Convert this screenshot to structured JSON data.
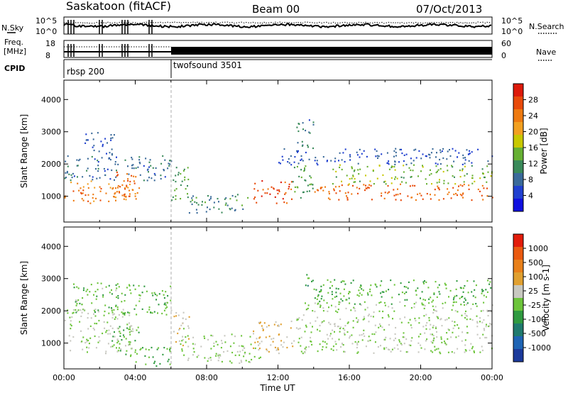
{
  "header": {
    "station": "Saskatoon (fitACF)",
    "beam": "Beam 00",
    "date": "07/Oct/2013"
  },
  "panels": {
    "nsky_label": "N.Sky",
    "nsearch_label": "N.Search",
    "nsky_ticks": [
      "10^5",
      "10^0"
    ],
    "nsearch_ticks": [
      "10^5",
      "10^0"
    ],
    "freq_label": [
      "Freq.",
      "[MHz]"
    ],
    "freq_ticks": [
      "18",
      "8"
    ],
    "nave_label": "Nave",
    "nave_ticks": [
      "60",
      "0"
    ],
    "cpid_label": "CPID",
    "cpid_segments": [
      {
        "name": "rbsp 200",
        "start_hour": 0,
        "end_hour": 6
      },
      {
        "name": "twofsound 3501",
        "start_hour": 6,
        "end_hour": 24
      }
    ]
  },
  "colors": {
    "power_scale": [
      "#1010e0",
      "#2040d0",
      "#3a6a9a",
      "#3a8a5a",
      "#66b033",
      "#c8c800",
      "#f2a020",
      "#ee7a10",
      "#e84a0a",
      "#dd1a0a"
    ],
    "velocity_scale": [
      "#1b3a9b",
      "#1e64b4",
      "#1f7a6e",
      "#2f9a40",
      "#6cc43a",
      "#c8c8c0",
      "#e0a030",
      "#e8801a",
      "#ea5a10",
      "#e21c0a"
    ],
    "power_bins": [
      30,
      28,
      24,
      20,
      16,
      12,
      8,
      4
    ],
    "velocity_bins": [
      1000,
      500,
      100,
      25,
      -25,
      -100,
      -500,
      -1000
    ]
  },
  "chart_data": [
    {
      "type": "heatmap",
      "title": "",
      "xlabel": "",
      "ylabel": "Slant Range [km]",
      "xlim": [
        0,
        24
      ],
      "ylim": [
        200,
        4600
      ],
      "yticks": [
        "1000",
        "2000",
        "3000",
        "4000"
      ],
      "colorbar_label": "Power [dB]",
      "colorbar_ticks": [
        "28",
        "24",
        "20",
        "16",
        "12",
        "8",
        "4"
      ],
      "colorbar_range": [
        0,
        30
      ],
      "regions": [
        {
          "x0": 0.0,
          "x1": 4.2,
          "y0": 800,
          "y1": 1500,
          "level": 22
        },
        {
          "x0": 2.5,
          "x1": 4.0,
          "y0": 1000,
          "y1": 1800,
          "level": 24
        },
        {
          "x0": 0.0,
          "x1": 6.0,
          "y0": 1500,
          "y1": 2300,
          "level": 8
        },
        {
          "x0": 1.0,
          "x1": 2.8,
          "y0": 2300,
          "y1": 3000,
          "level": 6
        },
        {
          "x0": 6.0,
          "x1": 7.0,
          "y0": 900,
          "y1": 2100,
          "level": 12
        },
        {
          "x0": 7.0,
          "x1": 10.5,
          "y0": 500,
          "y1": 1100,
          "level": 10
        },
        {
          "x0": 10.5,
          "x1": 12.8,
          "y0": 800,
          "y1": 1500,
          "level": 26
        },
        {
          "x0": 12.8,
          "x1": 14.0,
          "y0": 900,
          "y1": 2000,
          "level": 12
        },
        {
          "x0": 14.0,
          "x1": 24.0,
          "y0": 900,
          "y1": 1400,
          "level": 24
        },
        {
          "x0": 15.0,
          "x1": 24.0,
          "y0": 1400,
          "y1": 2000,
          "level": 14
        },
        {
          "x0": 12.0,
          "x1": 24.0,
          "y0": 2000,
          "y1": 2500,
          "level": 6
        },
        {
          "x0": 13.0,
          "x1": 14.0,
          "y0": 2500,
          "y1": 3400,
          "level": 8
        }
      ]
    },
    {
      "type": "heatmap",
      "title": "",
      "xlabel": "Time UT",
      "ylabel": "Slant Range [km]",
      "xlim": [
        0,
        24
      ],
      "ylim": [
        200,
        4600
      ],
      "xticks": [
        "00:00",
        "04:00",
        "08:00",
        "12:00",
        "16:00",
        "20:00",
        "00:00"
      ],
      "yticks": [
        "1000",
        "2000",
        "3000",
        "4000"
      ],
      "colorbar_label": "Velocity [m s-1]",
      "colorbar_ticks": [
        "1000",
        "500",
        "100",
        "25",
        "-25",
        "-100",
        "-500",
        "-1000"
      ],
      "colorbar_range": [
        -1000,
        1000
      ],
      "regions": [
        {
          "x0": 0.0,
          "x1": 3.8,
          "y0": 700,
          "y1": 2100,
          "level": 0
        },
        {
          "x0": 2.5,
          "x1": 4.2,
          "y0": 600,
          "y1": 1600,
          "level": -150
        },
        {
          "x0": 4.0,
          "x1": 6.0,
          "y0": 300,
          "y1": 900,
          "level": -200
        },
        {
          "x0": 6.0,
          "x1": 7.0,
          "y0": 900,
          "y1": 2000,
          "level": 150
        },
        {
          "x0": 6.5,
          "x1": 11.0,
          "y0": 400,
          "y1": 1300,
          "level": 0
        },
        {
          "x0": 10.5,
          "x1": 13.0,
          "y0": 700,
          "y1": 1700,
          "level": 200
        },
        {
          "x0": 13.0,
          "x1": 24.0,
          "y0": 700,
          "y1": 2300,
          "level": 0
        },
        {
          "x0": 0.5,
          "x1": 6.0,
          "y0": 1900,
          "y1": 2900,
          "level": -150
        },
        {
          "x0": 14.0,
          "x1": 24.0,
          "y0": 2200,
          "y1": 3000,
          "level": -200
        },
        {
          "x0": 13.5,
          "x1": 14.0,
          "y0": 2600,
          "y1": 3400,
          "level": -300
        }
      ]
    }
  ]
}
